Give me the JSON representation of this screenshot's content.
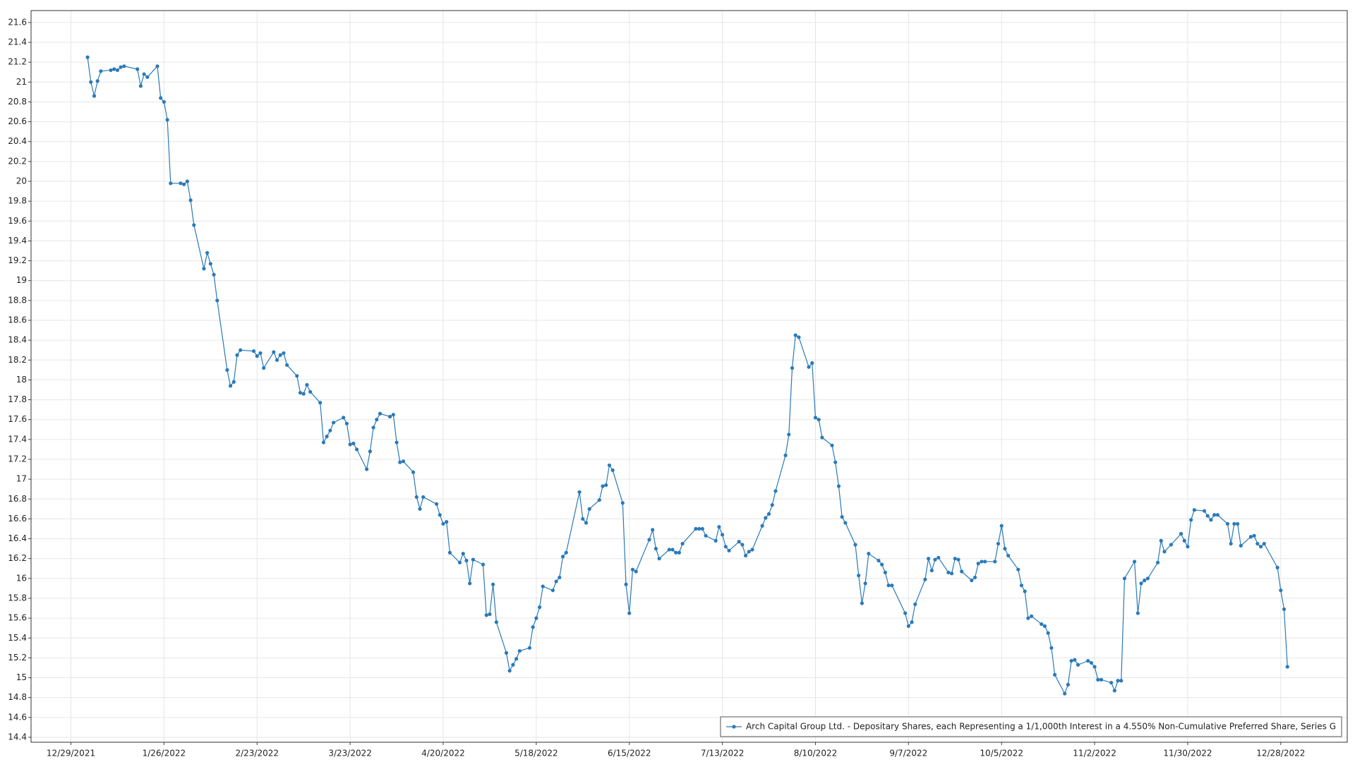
{
  "chart_data": {
    "type": "line",
    "x": [
      "1/3/2022",
      "1/4/2022",
      "1/5/2022",
      "1/6/2022",
      "1/7/2022",
      "1/10/2022",
      "1/11/2022",
      "1/12/2022",
      "1/13/2022",
      "1/14/2022",
      "1/18/2022",
      "1/19/2022",
      "1/20/2022",
      "1/21/2022",
      "1/24/2022",
      "1/25/2022",
      "1/26/2022",
      "1/27/2022",
      "1/28/2022",
      "1/31/2022",
      "2/1/2022",
      "2/2/2022",
      "2/3/2022",
      "2/4/2022",
      "2/7/2022",
      "2/8/2022",
      "2/9/2022",
      "2/10/2022",
      "2/11/2022",
      "2/14/2022",
      "2/15/2022",
      "2/16/2022",
      "2/17/2022",
      "2/18/2022",
      "2/22/2022",
      "2/23/2022",
      "2/24/2022",
      "2/25/2022",
      "2/28/2022",
      "3/1/2022",
      "3/2/2022",
      "3/3/2022",
      "3/4/2022",
      "3/7/2022",
      "3/8/2022",
      "3/9/2022",
      "3/10/2022",
      "3/11/2022",
      "3/14/2022",
      "3/15/2022",
      "3/16/2022",
      "3/17/2022",
      "3/18/2022",
      "3/21/2022",
      "3/22/2022",
      "3/23/2022",
      "3/24/2022",
      "3/25/2022",
      "3/28/2022",
      "3/29/2022",
      "3/30/2022",
      "3/31/2022",
      "4/1/2022",
      "4/4/2022",
      "4/5/2022",
      "4/6/2022",
      "4/7/2022",
      "4/8/2022",
      "4/11/2022",
      "4/12/2022",
      "4/13/2022",
      "4/14/2022",
      "4/18/2022",
      "4/19/2022",
      "4/20/2022",
      "4/21/2022",
      "4/22/2022",
      "4/25/2022",
      "4/26/2022",
      "4/27/2022",
      "4/28/2022",
      "4/29/2022",
      "5/2/2022",
      "5/3/2022",
      "5/4/2022",
      "5/5/2022",
      "5/6/2022",
      "5/9/2022",
      "5/10/2022",
      "5/11/2022",
      "5/12/2022",
      "5/13/2022",
      "5/16/2022",
      "5/17/2022",
      "5/18/2022",
      "5/19/2022",
      "5/20/2022",
      "5/23/2022",
      "5/24/2022",
      "5/25/2022",
      "5/26/2022",
      "5/27/2022",
      "5/31/2022",
      "6/1/2022",
      "6/2/2022",
      "6/3/2022",
      "6/6/2022",
      "6/7/2022",
      "6/8/2022",
      "6/9/2022",
      "6/10/2022",
      "6/13/2022",
      "6/14/2022",
      "6/15/2022",
      "6/16/2022",
      "6/17/2022",
      "6/21/2022",
      "6/22/2022",
      "6/23/2022",
      "6/24/2022",
      "6/27/2022",
      "6/28/2022",
      "6/29/2022",
      "6/30/2022",
      "7/1/2022",
      "7/5/2022",
      "7/6/2022",
      "7/7/2022",
      "7/8/2022",
      "7/11/2022",
      "7/12/2022",
      "7/13/2022",
      "7/14/2022",
      "7/15/2022",
      "7/18/2022",
      "7/19/2022",
      "7/20/2022",
      "7/21/2022",
      "7/22/2022",
      "7/25/2022",
      "7/26/2022",
      "7/27/2022",
      "7/28/2022",
      "7/29/2022",
      "8/1/2022",
      "8/2/2022",
      "8/3/2022",
      "8/4/2022",
      "8/5/2022",
      "8/8/2022",
      "8/9/2022",
      "8/10/2022",
      "8/11/2022",
      "8/12/2022",
      "8/15/2022",
      "8/16/2022",
      "8/17/2022",
      "8/18/2022",
      "8/19/2022",
      "8/22/2022",
      "8/23/2022",
      "8/24/2022",
      "8/25/2022",
      "8/26/2022",
      "8/29/2022",
      "8/30/2022",
      "8/31/2022",
      "9/1/2022",
      "9/2/2022",
      "9/6/2022",
      "9/7/2022",
      "9/8/2022",
      "9/9/2022",
      "9/12/2022",
      "9/13/2022",
      "9/14/2022",
      "9/15/2022",
      "9/16/2022",
      "9/19/2022",
      "9/20/2022",
      "9/21/2022",
      "9/22/2022",
      "9/23/2022",
      "9/26/2022",
      "9/27/2022",
      "9/28/2022",
      "9/29/2022",
      "9/30/2022",
      "10/3/2022",
      "10/4/2022",
      "10/5/2022",
      "10/6/2022",
      "10/7/2022",
      "10/10/2022",
      "10/11/2022",
      "10/12/2022",
      "10/13/2022",
      "10/14/2022",
      "10/17/2022",
      "10/18/2022",
      "10/19/2022",
      "10/20/2022",
      "10/21/2022",
      "10/24/2022",
      "10/25/2022",
      "10/26/2022",
      "10/27/2022",
      "10/28/2022",
      "10/31/2022",
      "11/1/2022",
      "11/2/2022",
      "11/3/2022",
      "11/4/2022",
      "11/7/2022",
      "11/8/2022",
      "11/9/2022",
      "11/10/2022",
      "11/11/2022",
      "11/14/2022",
      "11/15/2022",
      "11/16/2022",
      "11/17/2022",
      "11/18/2022",
      "11/21/2022",
      "11/22/2022",
      "11/23/2022",
      "11/25/2022",
      "11/28/2022",
      "11/29/2022",
      "11/30/2022",
      "12/1/2022",
      "12/2/2022",
      "12/5/2022",
      "12/6/2022",
      "12/7/2022",
      "12/8/2022",
      "12/9/2022",
      "12/12/2022",
      "12/13/2022",
      "12/14/2022",
      "12/15/2022",
      "12/16/2022",
      "12/19/2022",
      "12/20/2022",
      "12/21/2022",
      "12/22/2022",
      "12/23/2022",
      "12/27/2022",
      "12/28/2022",
      "12/29/2022",
      "12/30/2022"
    ],
    "series": [
      {
        "name": "Arch Capital Group Ltd. - Depositary Shares, each Representing a 1/1,000th Interest in a 4.550% Non-Cumulative Preferred Share, Series G",
        "color": "#2a7ab8",
        "values": [
          21.25,
          21.0,
          20.86,
          21.01,
          21.11,
          21.12,
          21.13,
          21.12,
          21.15,
          21.16,
          21.13,
          20.96,
          21.08,
          21.05,
          21.16,
          20.84,
          20.8,
          20.62,
          19.98,
          19.98,
          19.97,
          20.0,
          19.81,
          19.56,
          19.12,
          19.28,
          19.17,
          19.06,
          18.8,
          18.1,
          17.94,
          17.98,
          18.25,
          18.3,
          18.29,
          18.24,
          18.27,
          18.12,
          18.28,
          18.2,
          18.25,
          18.27,
          18.15,
          18.04,
          17.87,
          17.86,
          17.95,
          17.88,
          17.77,
          17.37,
          17.43,
          17.49,
          17.57,
          17.62,
          17.56,
          17.35,
          17.36,
          17.3,
          17.1,
          17.28,
          17.52,
          17.6,
          17.66,
          17.63,
          17.65,
          17.37,
          17.17,
          17.18,
          17.07,
          16.82,
          16.7,
          16.82,
          16.75,
          16.64,
          16.55,
          16.57,
          16.26,
          16.16,
          16.25,
          16.18,
          15.95,
          16.19,
          16.14,
          15.63,
          15.64,
          15.94,
          15.56,
          15.25,
          15.07,
          15.13,
          15.19,
          15.27,
          15.3,
          15.51,
          15.6,
          15.71,
          15.92,
          15.88,
          15.97,
          16.01,
          16.22,
          16.26,
          16.87,
          16.6,
          16.56,
          16.7,
          16.79,
          16.93,
          16.94,
          17.14,
          17.09,
          16.76,
          15.94,
          15.65,
          16.09,
          16.07,
          16.39,
          16.49,
          16.3,
          16.2,
          16.29,
          16.29,
          16.26,
          16.26,
          16.35,
          16.5,
          16.5,
          16.5,
          16.43,
          16.38,
          16.52,
          16.44,
          16.32,
          16.28,
          16.37,
          16.34,
          16.23,
          16.27,
          16.29,
          16.53,
          16.61,
          16.65,
          16.74,
          16.88,
          17.24,
          17.45,
          18.12,
          18.45,
          18.43,
          18.13,
          18.17,
          17.62,
          17.6,
          17.42,
          17.34,
          17.17,
          16.93,
          16.62,
          16.56,
          16.34,
          16.03,
          15.75,
          15.95,
          16.25,
          16.18,
          16.14,
          16.06,
          15.93,
          15.93,
          15.65,
          15.52,
          15.56,
          15.74,
          15.99,
          16.2,
          16.08,
          16.19,
          16.21,
          16.06,
          16.05,
          16.2,
          16.19,
          16.07,
          15.98,
          16.01,
          16.15,
          16.17,
          16.17,
          16.17,
          16.35,
          16.53,
          16.3,
          16.23,
          16.09,
          15.93,
          15.87,
          15.6,
          15.62,
          15.54,
          15.52,
          15.45,
          15.3,
          15.03,
          14.84,
          14.93,
          15.17,
          15.18,
          15.13,
          15.17,
          15.15,
          15.11,
          14.98,
          14.98,
          14.95,
          14.87,
          14.97,
          14.97,
          16.0,
          16.17,
          15.65,
          15.95,
          15.98,
          16.0,
          16.16,
          16.38,
          16.27,
          16.34,
          16.45,
          16.38,
          16.32,
          16.59,
          16.69,
          16.68,
          16.63,
          16.59,
          16.64,
          16.64,
          16.55,
          16.35,
          16.55,
          16.55,
          16.33,
          16.42,
          16.43,
          16.35,
          16.32,
          16.35,
          16.11,
          15.88,
          15.69,
          15.11
        ]
      }
    ],
    "xlim": [
      "12/17/2021",
      "1/17/2023"
    ],
    "xticks": [
      "12/29/2021",
      "1/26/2022",
      "2/23/2022",
      "3/23/2022",
      "4/20/2022",
      "5/18/2022",
      "6/15/2022",
      "7/13/2022",
      "8/10/2022",
      "9/7/2022",
      "10/5/2022",
      "11/2/2022",
      "11/30/2022",
      "12/28/2022"
    ],
    "ylim": [
      14.35,
      21.72
    ],
    "yticks": [
      14.4,
      14.6,
      14.8,
      15,
      15.2,
      15.4,
      15.6,
      15.8,
      16,
      16.2,
      16.4,
      16.6,
      16.8,
      17,
      17.2,
      17.4,
      17.6,
      17.8,
      18,
      18.2,
      18.4,
      18.6,
      18.8,
      19,
      19.2,
      19.4,
      19.6,
      19.8,
      20,
      20.2,
      20.4,
      20.6,
      20.8,
      21,
      21.2,
      21.4,
      21.6
    ],
    "grid": true,
    "markers": true,
    "legend": "lower right"
  }
}
